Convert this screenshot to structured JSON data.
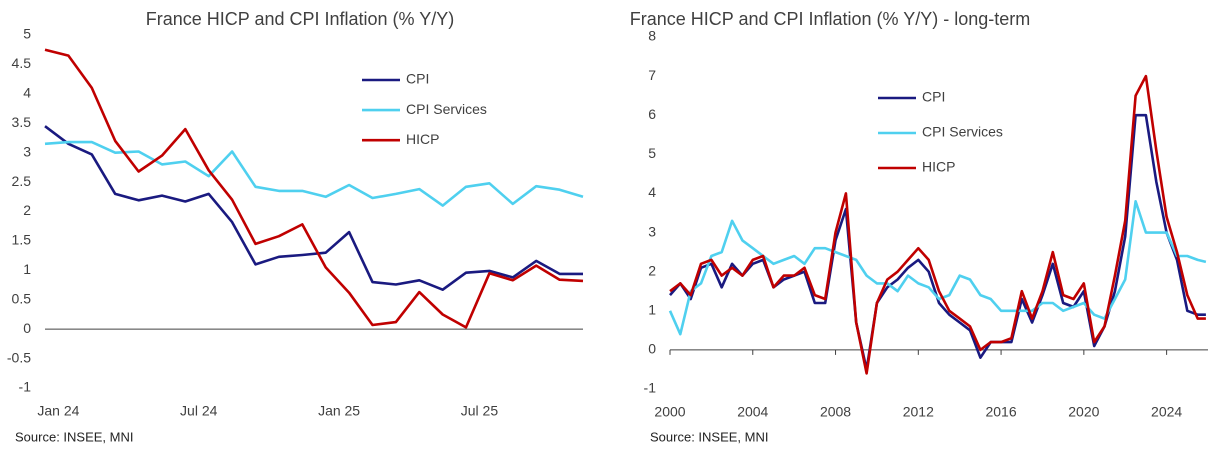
{
  "chart_data": [
    {
      "type": "line",
      "title": "France HICP and CPI Inflation (% Y/Y)",
      "source": "Source: INSEE, MNI",
      "categories": [
        null,
        "Jan 24",
        null,
        null,
        null,
        null,
        null,
        "Jul 24",
        null,
        null,
        null,
        null,
        null,
        "Jan 25",
        null,
        null,
        null,
        null,
        null,
        "Jul 25",
        null,
        null,
        null,
        null
      ],
      "series": [
        {
          "name": "CPI",
          "color": "#1a1a80",
          "values": [
            3.45,
            3.15,
            2.97,
            2.3,
            2.19,
            2.27,
            2.17,
            2.3,
            1.82,
            1.1,
            1.23,
            1.26,
            1.3,
            1.65,
            0.8,
            0.76,
            0.83,
            0.67,
            0.96,
            0.99,
            0.88,
            1.16,
            0.94,
            0.94
          ]
        },
        {
          "name": "CPI Services",
          "color": "#4fd0ef",
          "values": [
            3.15,
            3.18,
            3.18,
            3.0,
            3.02,
            2.8,
            2.85,
            2.6,
            3.02,
            2.42,
            2.35,
            2.35,
            2.25,
            2.45,
            2.23,
            2.3,
            2.38,
            2.1,
            2.42,
            2.48,
            2.13,
            2.43,
            2.37,
            2.25
          ]
        },
        {
          "name": "HICP",
          "color": "#c00000",
          "values": [
            4.75,
            4.65,
            4.1,
            3.2,
            2.68,
            2.95,
            3.4,
            2.7,
            2.2,
            1.45,
            1.58,
            1.78,
            1.05,
            0.62,
            0.07,
            0.12,
            0.63,
            0.25,
            0.03,
            0.95,
            0.83,
            1.08,
            0.84,
            0.82
          ]
        }
      ],
      "ylim": [
        -1,
        5
      ],
      "yticks": [
        -1,
        -0.5,
        0,
        0.5,
        1,
        1.5,
        2,
        2.5,
        3,
        3.5,
        4,
        4.5,
        5
      ]
    },
    {
      "type": "line",
      "title": "France HICP and CPI Inflation (% Y/Y) - long-term",
      "source": "Source: INSEE, MNI",
      "x": [
        2000,
        2000.5,
        2001,
        2001.5,
        2002,
        2002.5,
        2003,
        2003.5,
        2004,
        2004.5,
        2005,
        2005.5,
        2006,
        2006.5,
        2007,
        2007.5,
        2008,
        2008.5,
        2009,
        2009.5,
        2010,
        2010.5,
        2011,
        2011.5,
        2012,
        2012.5,
        2013,
        2013.5,
        2014,
        2014.5,
        2015,
        2015.5,
        2016,
        2016.5,
        2017,
        2017.5,
        2018,
        2018.5,
        2019,
        2019.5,
        2020,
        2020.5,
        2021,
        2021.5,
        2022,
        2022.5,
        2023,
        2023.5,
        2024,
        2024.5,
        2025,
        2025.5,
        2025.9
      ],
      "series": [
        {
          "name": "CPI",
          "color": "#1a1a80",
          "values": [
            1.4,
            1.7,
            1.3,
            2.1,
            2.2,
            1.6,
            2.2,
            1.9,
            2.2,
            2.3,
            1.6,
            1.8,
            1.9,
            2.0,
            1.2,
            1.2,
            2.8,
            3.6,
            0.7,
            -0.5,
            1.2,
            1.6,
            1.8,
            2.1,
            2.3,
            2.0,
            1.2,
            0.9,
            0.7,
            0.5,
            -0.2,
            0.2,
            0.2,
            0.2,
            1.3,
            0.7,
            1.4,
            2.2,
            1.2,
            1.1,
            1.5,
            0.1,
            0.6,
            1.5,
            2.9,
            6.0,
            6.0,
            4.3,
            3.0,
            2.3,
            1.0,
            0.9,
            0.9
          ]
        },
        {
          "name": "CPI Services",
          "color": "#4fd0ef",
          "values": [
            1.0,
            0.4,
            1.5,
            1.7,
            2.4,
            2.5,
            3.3,
            2.8,
            2.6,
            2.4,
            2.2,
            2.3,
            2.4,
            2.2,
            2.6,
            2.6,
            2.5,
            2.4,
            2.3,
            1.9,
            1.7,
            1.7,
            1.5,
            1.9,
            1.7,
            1.6,
            1.3,
            1.4,
            1.9,
            1.8,
            1.4,
            1.3,
            1.0,
            1.0,
            1.0,
            1.0,
            1.2,
            1.2,
            1.0,
            1.1,
            1.2,
            0.9,
            0.8,
            1.3,
            1.8,
            3.8,
            3.0,
            3.0,
            3.0,
            2.4,
            2.4,
            2.3,
            2.25
          ]
        },
        {
          "name": "HICP",
          "color": "#c00000",
          "values": [
            1.5,
            1.7,
            1.4,
            2.2,
            2.3,
            1.9,
            2.1,
            1.9,
            2.3,
            2.4,
            1.6,
            1.9,
            1.9,
            2.1,
            1.4,
            1.3,
            3.0,
            4.0,
            0.7,
            -0.6,
            1.2,
            1.8,
            2.0,
            2.3,
            2.6,
            2.3,
            1.5,
            1.0,
            0.8,
            0.6,
            0.0,
            0.2,
            0.2,
            0.3,
            1.5,
            0.8,
            1.5,
            2.5,
            1.4,
            1.3,
            1.7,
            0.2,
            0.6,
            1.9,
            3.3,
            6.5,
            7.0,
            5.1,
            3.4,
            2.5,
            1.4,
            0.8,
            0.8
          ]
        }
      ],
      "xlim": [
        2000,
        2026
      ],
      "xticks": [
        2000,
        2004,
        2008,
        2012,
        2016,
        2020,
        2024
      ],
      "ylim": [
        -1,
        8
      ],
      "yticks": [
        -1,
        0,
        1,
        2,
        3,
        4,
        5,
        6,
        7,
        8
      ]
    }
  ]
}
